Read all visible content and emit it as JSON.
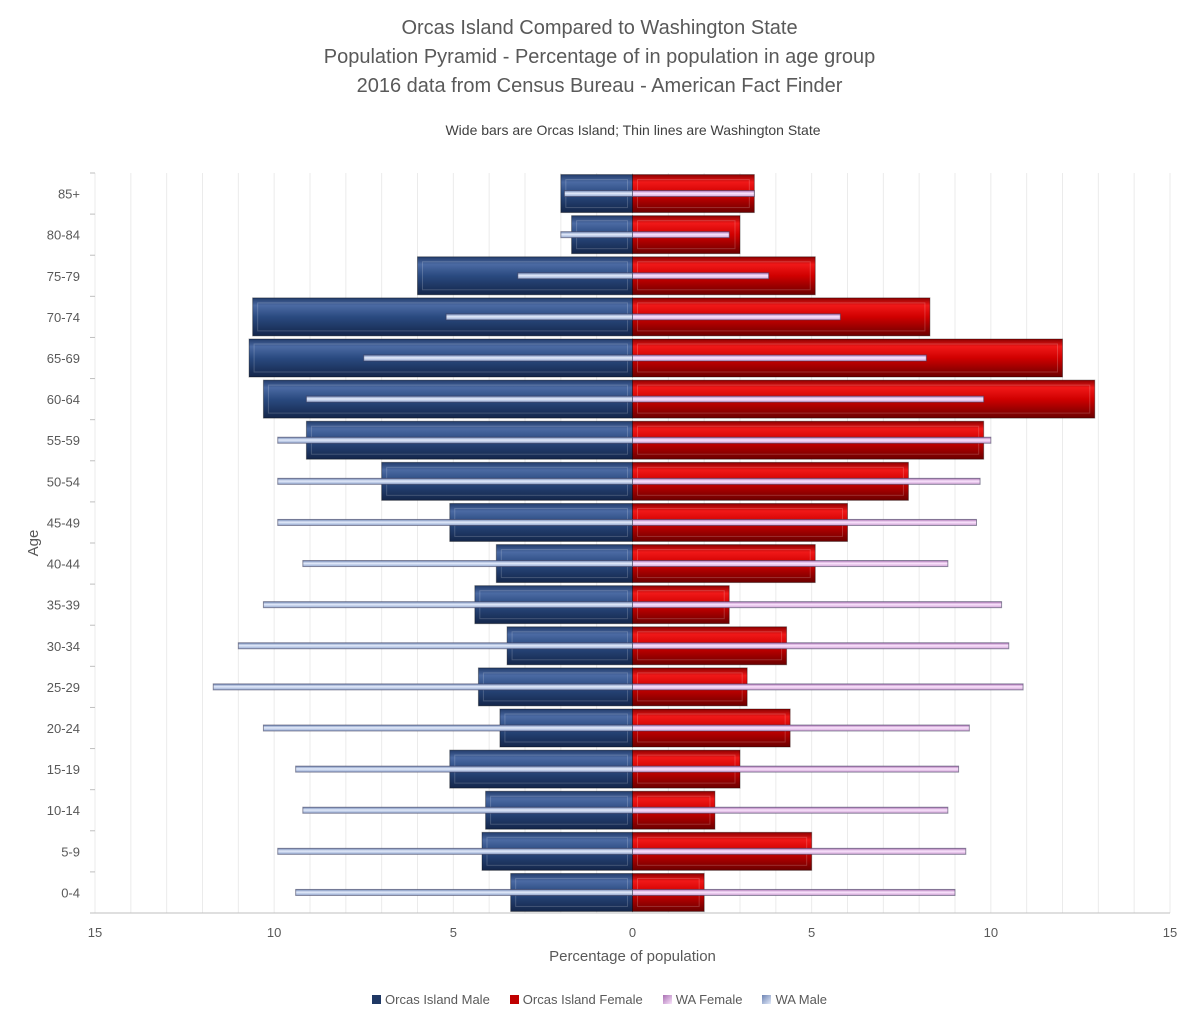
{
  "chart_data": {
    "type": "bar",
    "orientation": "horizontal",
    "title_lines": [
      "Orcas Island Compared to Washington State",
      "Population Pyramid - Percentage of in population in age group",
      "2016 data from Census Bureau - American Fact Finder"
    ],
    "subtitle": "Wide bars are Orcas Island; Thin lines are Washington State",
    "xlabel": "Percentage of population",
    "ylabel": "Age",
    "xlim": [
      -15,
      15
    ],
    "x_ticks": [
      -15,
      -10,
      -5,
      0,
      5,
      10,
      15
    ],
    "x_tick_labels": [
      "15",
      "10",
      "5",
      "0",
      "5",
      "10",
      "15"
    ],
    "categories": [
      "0-4",
      "5-9",
      "10-14",
      "15-19",
      "20-24",
      "25-29",
      "30-34",
      "35-39",
      "40-44",
      "45-49",
      "50-54",
      "55-59",
      "60-64",
      "65-69",
      "70-74",
      "75-79",
      "80-84",
      "85+"
    ],
    "series": [
      {
        "name": "Orcas Island Male",
        "side": "left",
        "style": "wide",
        "color": "#1f3864",
        "values": [
          3.4,
          4.2,
          4.1,
          5.1,
          3.7,
          4.3,
          3.5,
          4.4,
          3.8,
          5.1,
          7.0,
          9.1,
          10.3,
          10.7,
          10.6,
          6.0,
          1.7,
          2.0
        ]
      },
      {
        "name": "Orcas Island Female",
        "side": "right",
        "style": "wide",
        "color": "#c00000",
        "values": [
          2.0,
          5.0,
          2.3,
          3.0,
          4.4,
          3.2,
          4.3,
          2.7,
          5.1,
          6.0,
          7.7,
          9.8,
          12.9,
          12.0,
          8.3,
          5.1,
          3.0,
          3.4
        ]
      },
      {
        "name": "WA Female",
        "side": "right",
        "style": "thin",
        "color": "#e8b4ec",
        "values": [
          9.0,
          9.3,
          8.8,
          9.1,
          9.4,
          10.9,
          10.5,
          10.3,
          8.8,
          9.6,
          9.7,
          10.0,
          9.8,
          8.2,
          5.8,
          3.8,
          2.7,
          3.4
        ]
      },
      {
        "name": "WA Male",
        "side": "left",
        "style": "thin",
        "color": "#a5b8dc",
        "values": [
          9.4,
          9.9,
          9.2,
          9.4,
          10.3,
          11.7,
          11.0,
          10.3,
          9.2,
          9.9,
          9.9,
          9.9,
          9.1,
          7.5,
          5.2,
          3.2,
          2.0,
          1.9
        ]
      }
    ],
    "legend_position": "bottom",
    "grid": "vertical minor"
  }
}
